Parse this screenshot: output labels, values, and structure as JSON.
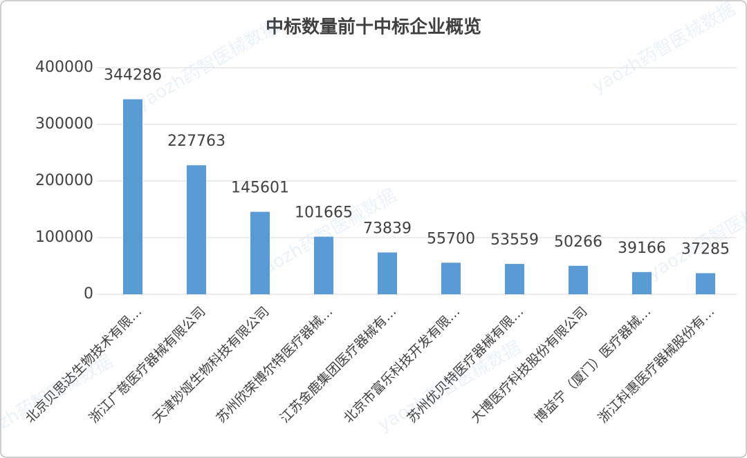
{
  "chart_data": {
    "type": "bar",
    "title": "中标数量前十中标企业概览",
    "categories": [
      "北京贝思达生物技术有限…",
      "浙江广慈医疗器械有限公司",
      "天津妙娅生物科技有限公司",
      "苏州欣荣博尔特医疗器械…",
      "江苏金鹿集团医疗器械有…",
      "北京市富乐科技开发有限…",
      "苏州优贝特医疗器械有限…",
      "大博医疗科技股份有限公司",
      "博益宁（厦门）医疗器械…",
      "浙江科惠医疗器械股份有…"
    ],
    "values": [
      344286,
      227763,
      145601,
      101665,
      73839,
      55700,
      53559,
      50266,
      39166,
      37285
    ],
    "color": "#5b9bd5",
    "ylim": [
      0,
      400000
    ],
    "yticks": [
      0,
      100000,
      200000,
      300000,
      400000
    ],
    "grid": true,
    "watermark": "yaozh药智医械数据"
  }
}
